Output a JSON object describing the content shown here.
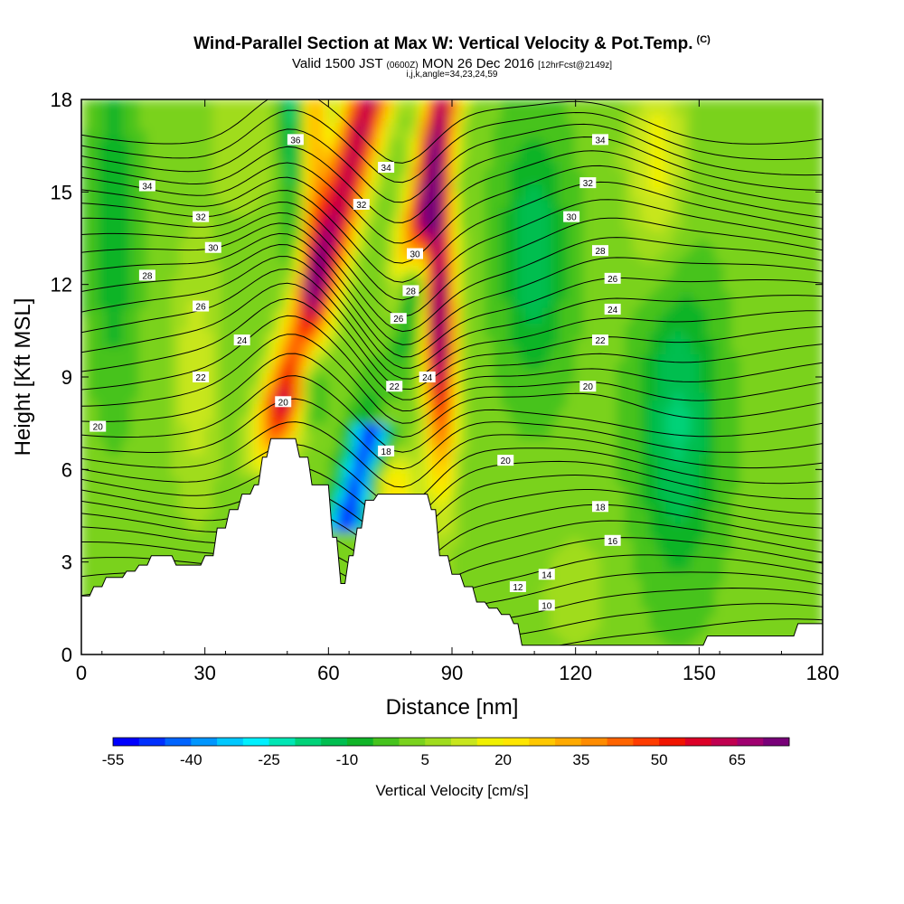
{
  "title": {
    "main": "Wind-Parallel Section at Max W: Vertical Velocity & Pot.Temp.",
    "copyright": "(C)",
    "valid_a": "Valid 1500 JST",
    "valid_b": "(0600Z)",
    "valid_c": "MON 26 Dec 2016",
    "valid_d": "[12hrFcst@2149z]",
    "indices": "i,j,k,angle=34,23,24,59"
  },
  "chart_data": {
    "type": "heatmap",
    "xlabel": "Distance [nm]",
    "ylabel": "Height [Kft MSL]",
    "xlim": [
      0,
      180
    ],
    "ylim": [
      0,
      18
    ],
    "xticks": [
      0,
      30,
      60,
      90,
      120,
      150,
      180
    ],
    "yticks": [
      0,
      3,
      6,
      9,
      12,
      15,
      18
    ],
    "colorbar": {
      "label": "Vertical Velocity [cm/s]",
      "ticks": [
        -55,
        -40,
        -25,
        -10,
        5,
        20,
        35,
        50,
        65
      ],
      "levels": [
        -55,
        -50,
        -45,
        -40,
        -35,
        -30,
        -25,
        -20,
        -15,
        -10,
        -5,
        0,
        5,
        10,
        15,
        20,
        25,
        30,
        35,
        40,
        45,
        50,
        55,
        60,
        65,
        70
      ],
      "colors": [
        "#0000ff",
        "#0030ff",
        "#0064ff",
        "#0096ff",
        "#00c8ff",
        "#00f0ff",
        "#00e6b4",
        "#00d278",
        "#00be50",
        "#10b428",
        "#46c31e",
        "#7ad21e",
        "#a0dc1e",
        "#c8e61e",
        "#f0f000",
        "#ffe600",
        "#ffc800",
        "#ffaa00",
        "#ff8c00",
        "#ff6400",
        "#ff3c00",
        "#f01400",
        "#dc0028",
        "#c00050",
        "#a00070",
        "#780078"
      ]
    },
    "contour_labels": [
      {
        "x": 4,
        "y": 7.4,
        "text": "20"
      },
      {
        "x": 16,
        "y": 15.2,
        "text": "34"
      },
      {
        "x": 29,
        "y": 14.2,
        "text": "32"
      },
      {
        "x": 32,
        "y": 13.2,
        "text": "30"
      },
      {
        "x": 16,
        "y": 12.3,
        "text": "28"
      },
      {
        "x": 29,
        "y": 11.3,
        "text": "26"
      },
      {
        "x": 39,
        "y": 10.2,
        "text": "24"
      },
      {
        "x": 29,
        "y": 9.0,
        "text": "22"
      },
      {
        "x": 49,
        "y": 8.2,
        "text": "20"
      },
      {
        "x": 52,
        "y": 16.7,
        "text": "36"
      },
      {
        "x": 74,
        "y": 15.8,
        "text": "34"
      },
      {
        "x": 68,
        "y": 14.6,
        "text": "32"
      },
      {
        "x": 81,
        "y": 13.0,
        "text": "30"
      },
      {
        "x": 80,
        "y": 11.8,
        "text": "28"
      },
      {
        "x": 77,
        "y": 10.9,
        "text": "26"
      },
      {
        "x": 84,
        "y": 9.0,
        "text": "24"
      },
      {
        "x": 76,
        "y": 8.7,
        "text": "22"
      },
      {
        "x": 74,
        "y": 6.6,
        "text": "18"
      },
      {
        "x": 103,
        "y": 6.3,
        "text": "20"
      },
      {
        "x": 126,
        "y": 16.7,
        "text": "34"
      },
      {
        "x": 123,
        "y": 15.3,
        "text": "32"
      },
      {
        "x": 119,
        "y": 14.2,
        "text": "30"
      },
      {
        "x": 126,
        "y": 13.1,
        "text": "28"
      },
      {
        "x": 129,
        "y": 12.2,
        "text": "26"
      },
      {
        "x": 129,
        "y": 11.2,
        "text": "24"
      },
      {
        "x": 126,
        "y": 10.2,
        "text": "22"
      },
      {
        "x": 123,
        "y": 8.7,
        "text": "20"
      },
      {
        "x": 126,
        "y": 4.8,
        "text": "18"
      },
      {
        "x": 129,
        "y": 3.7,
        "text": "16"
      },
      {
        "x": 113,
        "y": 2.6,
        "text": "14"
      },
      {
        "x": 106,
        "y": 2.2,
        "text": "12"
      },
      {
        "x": 113,
        "y": 1.6,
        "text": "10"
      }
    ],
    "terrain": [
      [
        0,
        1.9
      ],
      [
        2,
        1.9
      ],
      [
        3,
        2.2
      ],
      [
        5,
        2.2
      ],
      [
        6,
        2.5
      ],
      [
        10,
        2.5
      ],
      [
        11,
        2.7
      ],
      [
        13,
        2.7
      ],
      [
        14,
        2.9
      ],
      [
        16,
        2.9
      ],
      [
        17,
        3.2
      ],
      [
        22,
        3.2
      ],
      [
        23,
        2.9
      ],
      [
        29,
        2.9
      ],
      [
        30,
        3.2
      ],
      [
        32,
        3.2
      ],
      [
        33,
        4.1
      ],
      [
        35,
        4.1
      ],
      [
        36,
        4.7
      ],
      [
        38,
        4.7
      ],
      [
        39,
        5.2
      ],
      [
        41,
        5.2
      ],
      [
        42,
        5.5
      ],
      [
        43,
        5.5
      ],
      [
        44,
        6.4
      ],
      [
        45,
        6.4
      ],
      [
        46,
        7.0
      ],
      [
        52,
        7.0
      ],
      [
        53,
        6.4
      ],
      [
        55,
        6.4
      ],
      [
        56,
        5.5
      ],
      [
        60,
        5.5
      ],
      [
        61,
        3.8
      ],
      [
        62,
        3.8
      ],
      [
        63,
        2.3
      ],
      [
        64,
        2.3
      ],
      [
        65,
        3.2
      ],
      [
        66,
        3.2
      ],
      [
        67,
        4.1
      ],
      [
        68,
        4.1
      ],
      [
        69,
        5.0
      ],
      [
        71,
        5.0
      ],
      [
        72,
        5.2
      ],
      [
        84,
        5.2
      ],
      [
        85,
        4.7
      ],
      [
        86,
        4.7
      ],
      [
        87,
        3.2
      ],
      [
        89,
        3.2
      ],
      [
        90,
        2.6
      ],
      [
        92,
        2.6
      ],
      [
        93,
        2.2
      ],
      [
        95,
        2.2
      ],
      [
        96,
        1.7
      ],
      [
        98,
        1.7
      ],
      [
        99,
        1.5
      ],
      [
        101,
        1.5
      ],
      [
        102,
        1.3
      ],
      [
        104,
        1.3
      ],
      [
        105,
        1.0
      ],
      [
        106,
        1.0
      ],
      [
        107,
        0.3
      ],
      [
        151,
        0.3
      ],
      [
        152,
        0.6
      ],
      [
        173,
        0.6
      ],
      [
        174,
        1.0
      ],
      [
        180,
        1.0
      ]
    ]
  }
}
